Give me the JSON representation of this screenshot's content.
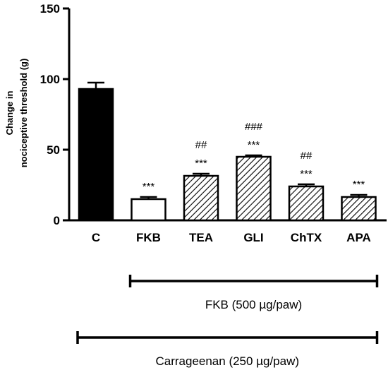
{
  "chart_data": {
    "type": "bar",
    "ylabel_lines": [
      "Change in",
      "nociceptive threshold (g)"
    ],
    "ylim": [
      0,
      150
    ],
    "yticks": [
      0,
      50,
      100,
      150
    ],
    "categories": [
      "C",
      "FKB",
      "TEA",
      "GLI",
      "ChTX",
      "APA"
    ],
    "values": [
      93,
      15,
      31.5,
      45,
      24,
      16.5
    ],
    "errors": [
      4.5,
      1.5,
      1.5,
      1,
      1.5,
      1.5
    ],
    "fill": [
      "solid",
      "empty",
      "hatched",
      "hatched",
      "hatched",
      "hatched"
    ],
    "annotations": [
      [
        "",
        ""
      ],
      [
        "***",
        ""
      ],
      [
        "***",
        "##"
      ],
      [
        "***",
        "###"
      ],
      [
        "***",
        "##"
      ],
      [
        "***",
        ""
      ]
    ],
    "brackets": [
      {
        "label": "FKB (500 µg/paw)",
        "from": "FKB",
        "to": "APA"
      },
      {
        "label": "Carrageenan (250 µg/paw)",
        "from": "C",
        "to": "APA"
      }
    ],
    "colors": {
      "solid": "#000000",
      "line": "#000000",
      "background": "#ffffff"
    }
  }
}
